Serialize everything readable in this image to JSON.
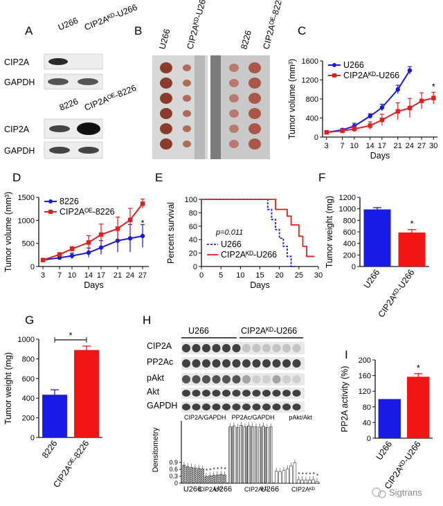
{
  "panels": {
    "A": {
      "letter": "A",
      "top_cols": [
        "U266",
        "CIP2Aᴷᴰ-U266"
      ],
      "bottom_cols": [
        "8226",
        "CIP2Aᴼᴱ-8226"
      ],
      "rows_top": [
        "CIP2A",
        "GAPDH"
      ],
      "rows_bottom": [
        "CIP2A",
        "GAPDH"
      ]
    },
    "B": {
      "letter": "B",
      "cols": [
        "U266",
        "CIP2Aᴷᴰ-U266",
        "8226",
        "CIP2Aᴼᴱ-8226"
      ]
    },
    "C": {
      "letter": "C"
    },
    "D": {
      "letter": "D"
    },
    "E": {
      "letter": "E",
      "pvalue": "p=0.011"
    },
    "F": {
      "letter": "F",
      "star": "*"
    },
    "G": {
      "letter": "G",
      "star": "*"
    },
    "H": {
      "letter": "H",
      "group_labels": [
        "U266",
        "CIP2Aᴷᴰ-U266"
      ],
      "rows": [
        "CIP2A",
        "PP2Ac",
        "pAkt",
        "Akt",
        "GAPDH"
      ],
      "sub_titles": [
        "CIP2A/GAPDH",
        "PP2Ac/GAPDH",
        "pAkt/Akt"
      ],
      "x_groups": [
        "U266",
        "CIP2Aᴷᴰ",
        "U266",
        "CIP2Aᴷᴰ",
        "U266",
        "CIP2Aᴷᴰ"
      ]
    },
    "I": {
      "letter": "I",
      "star": "*"
    }
  },
  "watermark": "Sigtrans",
  "chart_data": [
    {
      "panel": "C",
      "type": "line",
      "x": [
        3,
        7,
        10,
        14,
        17,
        21,
        24,
        27,
        30
      ],
      "xlabel": "Days",
      "ylabel": "Tumor volume (mm³)",
      "ylim": [
        0,
        1600
      ],
      "yticks": [
        0,
        400,
        800,
        1200,
        1600
      ],
      "legend": "top-left",
      "series": [
        {
          "name": "U266",
          "color": "#1a1ad6",
          "x": [
            3,
            7,
            10,
            14,
            17,
            21,
            24
          ],
          "values": [
            100,
            150,
            230,
            440,
            620,
            1000,
            1400
          ],
          "err": [
            20,
            30,
            60,
            50,
            70,
            90,
            80
          ]
        },
        {
          "name": "CIP2Aᴷᴰ-U266",
          "color": "#e02020",
          "x": [
            3,
            7,
            10,
            14,
            17,
            21,
            24,
            27,
            30
          ],
          "values": [
            100,
            130,
            170,
            240,
            360,
            540,
            610,
            760,
            820
          ],
          "err": [
            15,
            40,
            60,
            80,
            120,
            180,
            200,
            170,
            120
          ]
        }
      ],
      "annotations": [
        {
          "text": "*",
          "x": 30,
          "y": 1000
        }
      ]
    },
    {
      "panel": "D",
      "type": "line",
      "x": [
        3,
        7,
        10,
        14,
        17,
        21,
        24,
        27
      ],
      "xlabel": "Days",
      "ylabel": "Tumor volume (mm³)",
      "ylim": [
        0,
        1500
      ],
      "yticks": [
        0,
        500,
        1000,
        1500
      ],
      "legend": "top-left",
      "series": [
        {
          "name": "8226",
          "color": "#1a1ad6",
          "values": [
            140,
            190,
            230,
            300,
            410,
            560,
            610,
            660
          ],
          "err": [
            20,
            40,
            60,
            100,
            150,
            250,
            300,
            250
          ]
        },
        {
          "name": "CIP2Aᴼᴱ-8226",
          "color": "#e02020",
          "values": [
            140,
            260,
            380,
            520,
            690,
            820,
            1010,
            1360
          ],
          "err": [
            20,
            40,
            50,
            150,
            230,
            250,
            250,
            100
          ]
        }
      ],
      "annotations": [
        {
          "text": "*",
          "x": 27,
          "y": 880
        }
      ]
    },
    {
      "panel": "E",
      "type": "line",
      "x": [
        0,
        5,
        10,
        15,
        20,
        25,
        30
      ],
      "xlabel": "Days",
      "ylabel": "Percent survival",
      "ylim": [
        0,
        100
      ],
      "yticks": [
        0,
        20,
        40,
        60,
        80,
        100
      ],
      "legend": "bottom-left",
      "series": [
        {
          "name": "U266",
          "color": "#1a1ad6",
          "dashed": true,
          "steps": [
            [
              0,
              100
            ],
            [
              17,
              100
            ],
            [
              17,
              85
            ],
            [
              18,
              85
            ],
            [
              18,
              70
            ],
            [
              19,
              70
            ],
            [
              19,
              55
            ],
            [
              20,
              55
            ],
            [
              20,
              42
            ],
            [
              21,
              42
            ],
            [
              21,
              30
            ],
            [
              22,
              30
            ],
            [
              22,
              15
            ],
            [
              23,
              15
            ],
            [
              23,
              0
            ],
            [
              24,
              0
            ]
          ]
        },
        {
          "name": "CIP2Aᴷᴰ-U266",
          "color": "#e02020",
          "steps": [
            [
              0,
              100
            ],
            [
              19,
              100
            ],
            [
              19,
              85
            ],
            [
              22,
              85
            ],
            [
              22,
              75
            ],
            [
              23,
              75
            ],
            [
              23,
              62
            ],
            [
              25,
              62
            ],
            [
              25,
              45
            ],
            [
              26,
              45
            ],
            [
              26,
              30
            ],
            [
              27,
              30
            ],
            [
              27,
              15
            ],
            [
              29,
              15
            ]
          ]
        }
      ]
    },
    {
      "panel": "F",
      "type": "bar",
      "categories": [
        "U266",
        "CIP2Aᴷᴰ-U266"
      ],
      "values": [
        990,
        590
      ],
      "err": [
        30,
        50
      ],
      "colors": [
        "#1a1ae6",
        "#f01414"
      ],
      "ylabel": "Tumor weight (mg)",
      "ylim": [
        0,
        1200
      ],
      "yticks": [
        0,
        200,
        400,
        600,
        800,
        1000,
        1200
      ]
    },
    {
      "panel": "G",
      "type": "bar",
      "categories": [
        "8226",
        "CIP2Aᴼᴱ-8226"
      ],
      "values": [
        435,
        890
      ],
      "err": [
        50,
        40
      ],
      "colors": [
        "#1a1ae6",
        "#f01414"
      ],
      "ylabel": "Tumor weight (mg)",
      "ylim": [
        0,
        1000
      ],
      "yticks": [
        0,
        200,
        400,
        600,
        800,
        1000
      ]
    },
    {
      "panel": "H",
      "type": "bar",
      "ylabel": "Densitometry",
      "ylim": [
        0,
        0.9
      ],
      "yticks": [
        0,
        0.3,
        0.6,
        0.9
      ],
      "groups": [
        {
          "name": "CIP2A/GAPDH",
          "values": [
            0.78,
            0.72,
            0.68,
            0.66,
            0.64,
            0.62,
            0.3,
            0.32,
            0.34,
            0.36,
            0.38,
            0.36
          ],
          "star_from": 6
        },
        {
          "name": "PP2Ac/GAPDH",
          "values": [
            1.9,
            1.92,
            1.88,
            1.95,
            1.9,
            1.93,
            1.91,
            1.9,
            1.89,
            1.92,
            1.88,
            1.9
          ],
          "star_from": 99
        },
        {
          "name": "pAkt/Akt",
          "values": [
            0.52,
            0.5,
            0.55,
            0.62,
            0.75,
            0.88,
            0.15,
            0.14,
            0.13,
            0.14,
            0.15,
            0.08
          ],
          "star_from": 6
        }
      ]
    },
    {
      "panel": "I",
      "type": "bar",
      "categories": [
        "U266",
        "CIP2Aᴷᴰ-U266"
      ],
      "values": [
        100,
        157
      ],
      "err": [
        0,
        8
      ],
      "colors": [
        "#1a1ae6",
        "#f01414"
      ],
      "ylabel": "PP2A activity (%)",
      "ylim": [
        0,
        200
      ],
      "yticks": [
        0,
        40,
        80,
        120,
        160,
        200
      ]
    }
  ]
}
